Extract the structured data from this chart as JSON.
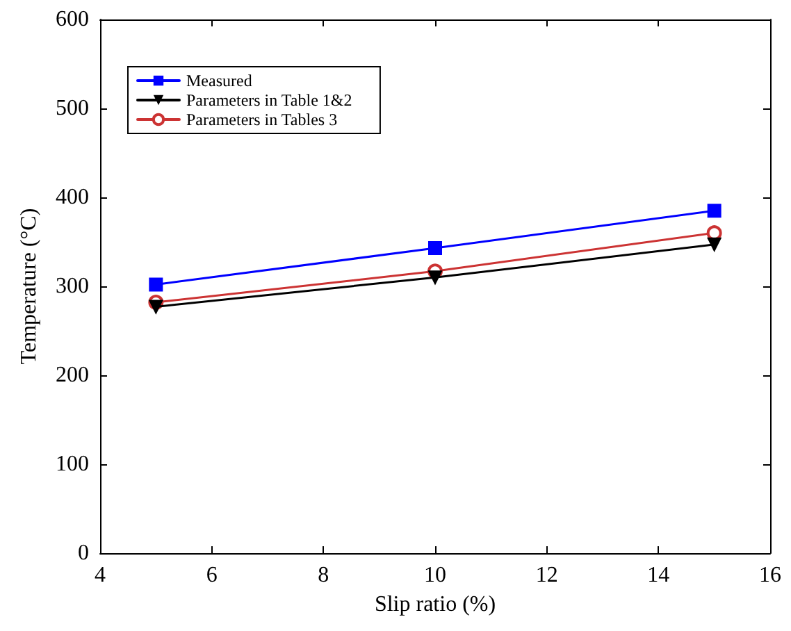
{
  "chart_data": {
    "type": "line",
    "xlabel": "Slip ratio (%)",
    "ylabel": "Temperature (°C)",
    "x": [
      5,
      10,
      15
    ],
    "series": [
      {
        "name": "Measured",
        "color": "#0000ff",
        "values": [
          302,
          343,
          385
        ],
        "marker": "square"
      },
      {
        "name": "Parameters in Table 1&2",
        "color": "#000000",
        "values": [
          277,
          310,
          347
        ],
        "marker": "triangle"
      },
      {
        "name": "Parameters in Tables 3",
        "color": "#cc3333",
        "values": [
          282,
          317,
          360
        ],
        "marker": "circle"
      }
    ],
    "xlim": [
      4,
      16
    ],
    "xticks": [
      4,
      6,
      8,
      10,
      12,
      14,
      16
    ],
    "ylim": [
      0,
      600
    ],
    "yticks": [
      0,
      100,
      200,
      300,
      400,
      500,
      600
    ],
    "grid": false,
    "legend": "top left",
    "line_style": "solid"
  }
}
